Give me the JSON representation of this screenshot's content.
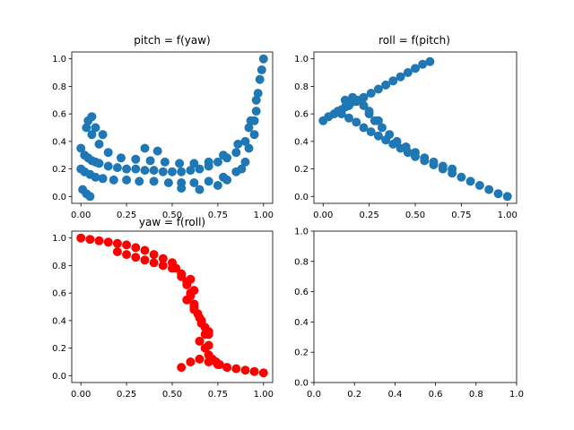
{
  "chart_data": [
    {
      "type": "scatter",
      "title": "pitch = f(yaw)",
      "xlabel": "",
      "ylabel": "",
      "xlim": [
        -0.05,
        1.05
      ],
      "ylim": [
        -0.05,
        1.05
      ],
      "xticks": [
        "0.00",
        "0.25",
        "0.50",
        "0.75",
        "1.00"
      ],
      "yticks": [
        "0.0",
        "0.2",
        "0.4",
        "0.6",
        "0.8",
        "1.0"
      ],
      "grid": false,
      "color": "#1f77b4",
      "series": [
        {
          "x": [
            0.0,
            0.02,
            0.04,
            0.06,
            0.08,
            0.1,
            0.15,
            0.2,
            0.25,
            0.3,
            0.35,
            0.4,
            0.45,
            0.5,
            0.55,
            0.6,
            0.65,
            0.7,
            0.75,
            0.8,
            0.85,
            0.9,
            0.93,
            0.96,
            0.98,
            1.0,
            0.0,
            0.02,
            0.05,
            0.08,
            0.12,
            0.18,
            0.25,
            0.32,
            0.4,
            0.48,
            0.55,
            0.62,
            0.7,
            0.78,
            0.85,
            0.9,
            0.95,
            0.03,
            0.06,
            0.1,
            0.15,
            0.22,
            0.3,
            0.38,
            0.46,
            0.54,
            0.62,
            0.7,
            0.78,
            0.86,
            0.92,
            0.96,
            0.01,
            0.03,
            0.05,
            0.04,
            0.06,
            0.08,
            0.12,
            0.35,
            0.42,
            0.55,
            0.65,
            0.75,
            0.8,
            0.88,
            0.92,
            0.95,
            0.97,
            0.99
          ],
          "y": [
            0.35,
            0.3,
            0.28,
            0.26,
            0.25,
            0.24,
            0.22,
            0.21,
            0.2,
            0.2,
            0.19,
            0.19,
            0.18,
            0.18,
            0.18,
            0.19,
            0.2,
            0.22,
            0.25,
            0.28,
            0.32,
            0.4,
            0.55,
            0.7,
            0.85,
            1.0,
            0.2,
            0.18,
            0.16,
            0.14,
            0.13,
            0.12,
            0.12,
            0.11,
            0.11,
            0.1,
            0.1,
            0.1,
            0.11,
            0.14,
            0.18,
            0.25,
            0.45,
            0.5,
            0.45,
            0.38,
            0.32,
            0.28,
            0.27,
            0.26,
            0.25,
            0.24,
            0.24,
            0.25,
            0.3,
            0.38,
            0.5,
            0.62,
            0.05,
            0.02,
            0.0,
            0.55,
            0.58,
            0.5,
            0.45,
            0.35,
            0.33,
            0.06,
            0.05,
            0.08,
            0.12,
            0.2,
            0.35,
            0.55,
            0.75,
            0.92
          ]
        }
      ]
    },
    {
      "type": "scatter",
      "title": "roll = f(pitch)",
      "xlabel": "",
      "ylabel": "",
      "xlim": [
        -0.05,
        1.05
      ],
      "ylim": [
        -0.05,
        1.05
      ],
      "xticks": [
        "0.00",
        "0.25",
        "0.50",
        "0.75",
        "1.00"
      ],
      "yticks": [
        "0.0",
        "0.2",
        "0.4",
        "0.6",
        "0.8",
        "1.0"
      ],
      "grid": false,
      "color": "#1f77b4",
      "series": [
        {
          "x": [
            0.0,
            0.03,
            0.06,
            0.1,
            0.14,
            0.18,
            0.22,
            0.26,
            0.3,
            0.34,
            0.38,
            0.42,
            0.46,
            0.5,
            0.54,
            0.58,
            0.1,
            0.14,
            0.18,
            0.22,
            0.26,
            0.3,
            0.34,
            0.38,
            0.42,
            0.46,
            0.5,
            0.55,
            0.6,
            0.65,
            0.7,
            0.75,
            0.8,
            0.85,
            0.9,
            0.95,
            1.0,
            0.08,
            0.12,
            0.15,
            0.18,
            0.22,
            0.25,
            0.28,
            0.32,
            0.36,
            0.4,
            0.45,
            0.5,
            0.55,
            0.6,
            0.65,
            0.7,
            0.12,
            0.16,
            0.2,
            0.25,
            0.3
          ],
          "y": [
            0.55,
            0.58,
            0.6,
            0.63,
            0.66,
            0.69,
            0.72,
            0.75,
            0.78,
            0.81,
            0.84,
            0.87,
            0.9,
            0.93,
            0.96,
            0.98,
            0.6,
            0.57,
            0.54,
            0.5,
            0.47,
            0.44,
            0.41,
            0.38,
            0.35,
            0.32,
            0.29,
            0.26,
            0.23,
            0.2,
            0.17,
            0.14,
            0.11,
            0.08,
            0.05,
            0.02,
            0.0,
            0.62,
            0.65,
            0.68,
            0.7,
            0.66,
            0.6,
            0.55,
            0.5,
            0.45,
            0.4,
            0.36,
            0.32,
            0.28,
            0.25,
            0.22,
            0.2,
            0.7,
            0.72,
            0.7,
            0.62,
            0.55
          ]
        }
      ]
    },
    {
      "type": "scatter",
      "title": "yaw = f(roll)",
      "xlabel": "",
      "ylabel": "",
      "xlim": [
        -0.05,
        1.05
      ],
      "ylim": [
        -0.05,
        1.05
      ],
      "xticks": [
        "0.00",
        "0.25",
        "0.50",
        "0.75",
        "1.00"
      ],
      "yticks": [
        "0.0",
        "0.2",
        "0.4",
        "0.6",
        "0.8",
        "1.0"
      ],
      "grid": false,
      "color": "#ff0000",
      "series": [
        {
          "x": [
            0.0,
            0.05,
            0.1,
            0.15,
            0.2,
            0.25,
            0.3,
            0.35,
            0.4,
            0.45,
            0.5,
            0.52,
            0.55,
            0.58,
            0.6,
            0.62,
            0.64,
            0.66,
            0.68,
            0.7,
            0.2,
            0.25,
            0.3,
            0.35,
            0.4,
            0.45,
            0.5,
            0.55,
            0.58,
            0.6,
            0.62,
            0.65,
            0.68,
            0.7,
            0.55,
            0.6,
            0.65,
            0.7,
            0.75,
            0.8,
            0.85,
            0.9,
            0.95,
            1.0,
            0.65,
            0.68,
            0.7,
            0.72,
            0.74,
            0.76,
            0.6,
            0.62,
            0.58,
            0.62,
            0.66,
            0.7
          ],
          "y": [
            1.0,
            0.99,
            0.98,
            0.97,
            0.96,
            0.95,
            0.93,
            0.91,
            0.88,
            0.85,
            0.82,
            0.78,
            0.74,
            0.68,
            0.6,
            0.52,
            0.45,
            0.38,
            0.3,
            0.22,
            0.9,
            0.88,
            0.86,
            0.84,
            0.82,
            0.8,
            0.78,
            0.72,
            0.66,
            0.58,
            0.5,
            0.42,
            0.35,
            0.3,
            0.06,
            0.1,
            0.12,
            0.1,
            0.08,
            0.06,
            0.05,
            0.04,
            0.03,
            0.02,
            0.25,
            0.2,
            0.15,
            0.12,
            0.1,
            0.08,
            0.7,
            0.62,
            0.55,
            0.48,
            0.4,
            0.32
          ]
        }
      ]
    },
    {
      "type": "scatter",
      "title": "",
      "xlabel": "",
      "ylabel": "",
      "xlim": [
        0.0,
        1.0
      ],
      "ylim": [
        0.0,
        1.0
      ],
      "xticks": [
        "0.0",
        "0.2",
        "0.4",
        "0.6",
        "0.8",
        "1.0"
      ],
      "yticks": [
        "0.0",
        "0.2",
        "0.4",
        "0.6",
        "0.8",
        "1.0"
      ],
      "grid": false,
      "color": "#1f77b4",
      "series": []
    }
  ]
}
